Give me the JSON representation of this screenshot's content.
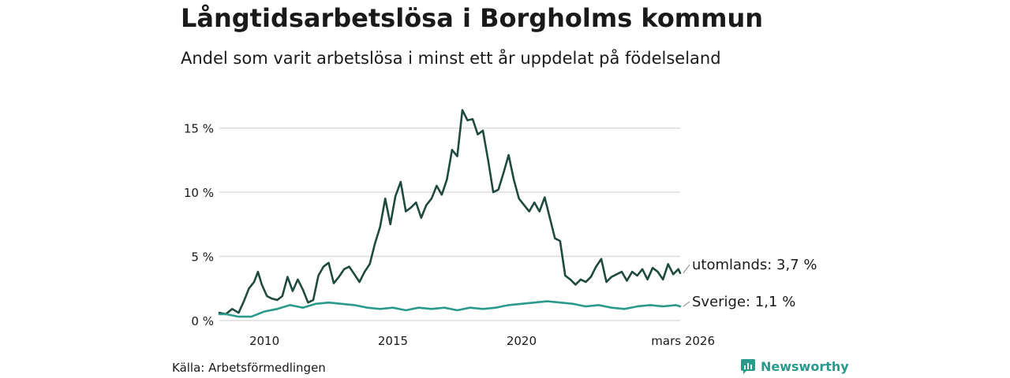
{
  "header": {
    "title": "Långtidsarbetslösa i Borgholms kommun",
    "subtitle": "Andel som varit arbetslösa i minst ett år uppdelat på födelseland"
  },
  "footer": {
    "source": "Källa: Arbetsförmedlingen",
    "brand": "Newsworthy"
  },
  "colors": {
    "utomlands": "#1f4a40",
    "sverige": "#2a9a8a",
    "grid": "#dddddd",
    "brand": "#2a9a8a"
  },
  "chart_data": {
    "type": "line",
    "title": "Långtidsarbetslösa i Borgholms kommun",
    "xlabel": "",
    "ylabel": "",
    "xlim": [
      2008.25,
      2026.17
    ],
    "ylim": [
      0,
      17
    ],
    "y_ticks": [
      0,
      5,
      10,
      15
    ],
    "y_tick_labels": [
      "0 %",
      "5 %",
      "10 %",
      "15 %"
    ],
    "x_ticks": [
      2010,
      2015,
      2020,
      2026.17
    ],
    "x_tick_labels": [
      "2010",
      "2015",
      "2020",
      "mars 2026"
    ],
    "grid": true,
    "series": [
      {
        "name": "utomlands",
        "end_label": "utomlands: 3,7 %",
        "x": [
          2008.25,
          2008.5,
          2008.75,
          2009.0,
          2009.2,
          2009.4,
          2009.6,
          2009.75,
          2009.9,
          2010.1,
          2010.3,
          2010.5,
          2010.7,
          2010.9,
          2011.1,
          2011.3,
          2011.5,
          2011.7,
          2011.9,
          2012.1,
          2012.3,
          2012.5,
          2012.7,
          2012.9,
          2013.1,
          2013.3,
          2013.5,
          2013.7,
          2013.9,
          2014.1,
          2014.3,
          2014.5,
          2014.7,
          2014.9,
          2015.1,
          2015.3,
          2015.5,
          2015.7,
          2015.9,
          2016.1,
          2016.3,
          2016.5,
          2016.7,
          2016.9,
          2017.1,
          2017.3,
          2017.5,
          2017.7,
          2017.9,
          2018.1,
          2018.3,
          2018.5,
          2018.7,
          2018.9,
          2019.1,
          2019.3,
          2019.5,
          2019.7,
          2019.9,
          2020.1,
          2020.3,
          2020.5,
          2020.7,
          2020.9,
          2021.1,
          2021.3,
          2021.5,
          2021.7,
          2021.9,
          2022.1,
          2022.3,
          2022.5,
          2022.7,
          2022.9,
          2023.1,
          2023.3,
          2023.5,
          2023.7,
          2023.9,
          2024.1,
          2024.3,
          2024.5,
          2024.7,
          2024.9,
          2025.1,
          2025.3,
          2025.5,
          2025.7,
          2025.9,
          2026.1,
          2026.17
        ],
        "values": [
          0.6,
          0.5,
          0.9,
          0.6,
          1.5,
          2.5,
          3.0,
          3.8,
          2.8,
          1.9,
          1.7,
          1.6,
          1.9,
          3.4,
          2.3,
          3.2,
          2.4,
          1.4,
          1.6,
          3.5,
          4.2,
          4.5,
          2.9,
          3.4,
          4.0,
          4.2,
          3.6,
          3.0,
          3.8,
          4.4,
          6.0,
          7.3,
          9.5,
          7.5,
          9.7,
          10.8,
          8.5,
          8.8,
          9.2,
          8.0,
          9.0,
          9.5,
          10.5,
          9.8,
          11.0,
          13.3,
          12.8,
          16.4,
          15.6,
          15.7,
          14.5,
          14.8,
          12.5,
          10.0,
          10.2,
          11.5,
          12.9,
          11.0,
          9.5,
          9.0,
          8.5,
          9.2,
          8.5,
          9.6,
          8.0,
          6.4,
          6.2,
          3.5,
          3.2,
          2.8,
          3.2,
          3.0,
          3.4,
          4.2,
          4.8,
          3.0,
          3.4,
          3.6,
          3.8,
          3.1,
          3.8,
          3.5,
          4.0,
          3.2,
          4.1,
          3.8,
          3.2,
          4.4,
          3.6,
          4.0,
          3.7
        ]
      },
      {
        "name": "Sverige",
        "end_label": "Sverige: 1,1 %",
        "x": [
          2008.25,
          2008.5,
          2008.75,
          2009.0,
          2009.5,
          2010.0,
          2010.5,
          2011.0,
          2011.5,
          2012.0,
          2012.5,
          2013.0,
          2013.5,
          2014.0,
          2014.5,
          2015.0,
          2015.5,
          2016.0,
          2016.5,
          2017.0,
          2017.5,
          2018.0,
          2018.5,
          2019.0,
          2019.5,
          2020.0,
          2020.5,
          2021.0,
          2021.5,
          2022.0,
          2022.5,
          2023.0,
          2023.5,
          2024.0,
          2024.5,
          2025.0,
          2025.5,
          2026.0,
          2026.17
        ],
        "values": [
          0.5,
          0.5,
          0.4,
          0.3,
          0.3,
          0.7,
          0.9,
          1.2,
          1.0,
          1.3,
          1.4,
          1.3,
          1.2,
          1.0,
          0.9,
          1.0,
          0.8,
          1.0,
          0.9,
          1.0,
          0.8,
          1.0,
          0.9,
          1.0,
          1.2,
          1.3,
          1.4,
          1.5,
          1.4,
          1.3,
          1.1,
          1.2,
          1.0,
          0.9,
          1.1,
          1.2,
          1.1,
          1.2,
          1.1
        ]
      }
    ]
  }
}
